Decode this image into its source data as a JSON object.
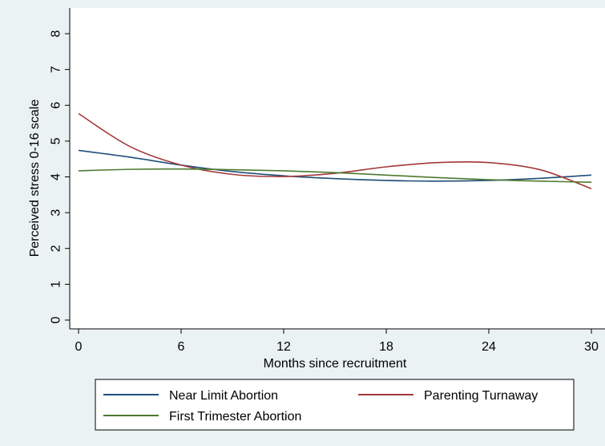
{
  "chart_data": {
    "type": "line",
    "title": "",
    "xlabel": "Months since recruitment",
    "ylabel": "Perceived stress 0-16 scale",
    "xlim": [
      0,
      30
    ],
    "ylim": [
      0,
      8
    ],
    "x_ticks": [
      0,
      6,
      12,
      18,
      24,
      30
    ],
    "y_ticks": [
      0,
      1,
      2,
      3,
      4,
      5,
      6,
      7,
      8
    ],
    "grid": false,
    "legend_position": "bottom",
    "x": [
      0,
      3,
      6,
      9,
      12,
      15,
      18,
      21,
      24,
      27,
      30
    ],
    "series": [
      {
        "name": "Near Limit Abortion",
        "color": "#1f4e79",
        "values": [
          4.74,
          4.55,
          4.33,
          4.15,
          4.03,
          3.95,
          3.9,
          3.88,
          3.9,
          3.96,
          4.05
        ]
      },
      {
        "name": "Parenting Turnaway",
        "color": "#a3383a",
        "values": [
          5.77,
          4.85,
          4.33,
          4.07,
          4.01,
          4.1,
          4.28,
          4.4,
          4.4,
          4.2,
          3.67
        ]
      },
      {
        "name": "First Trimester Abortion",
        "color": "#4e7a2e",
        "values": [
          4.17,
          4.21,
          4.22,
          4.2,
          4.17,
          4.12,
          4.05,
          3.98,
          3.92,
          3.88,
          3.85
        ]
      }
    ]
  }
}
